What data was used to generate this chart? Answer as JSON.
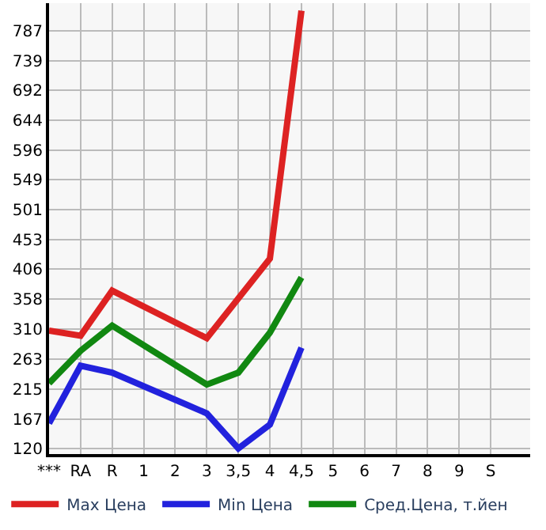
{
  "chart_data": {
    "type": "line",
    "categories": [
      "***",
      "RA",
      "R",
      "1",
      "2",
      "3",
      "3,5",
      "4",
      "4,5",
      "5",
      "6",
      "7",
      "8",
      "9",
      "S",
      null
    ],
    "series": [
      {
        "name": "Max Цена",
        "color": "#dd2222",
        "values": [
          308,
          300,
          372,
          null,
          null,
          296,
          null,
          423,
          819,
          null,
          null,
          null,
          null,
          null,
          null,
          null
        ]
      },
      {
        "name": "Min Цена",
        "color": "#2222dd",
        "values": [
          160,
          252,
          241,
          null,
          null,
          176,
          120,
          158,
          281,
          null,
          null,
          null,
          null,
          null,
          null,
          null
        ]
      },
      {
        "name": "Сред.Цена, т.йен",
        "color": "#118811",
        "values": [
          224,
          276,
          316,
          null,
          null,
          222,
          241,
          305,
          393,
          null,
          null,
          null,
          null,
          null,
          null,
          null
        ]
      }
    ],
    "ylim": [
      111,
      831
    ],
    "yticks": [
      120,
      167,
      215,
      263,
      310,
      358,
      406,
      453,
      501,
      549,
      596,
      644,
      692,
      739,
      787
    ],
    "grid": true,
    "legend": "bottom",
    "marker": "none",
    "line_style": "solid"
  }
}
